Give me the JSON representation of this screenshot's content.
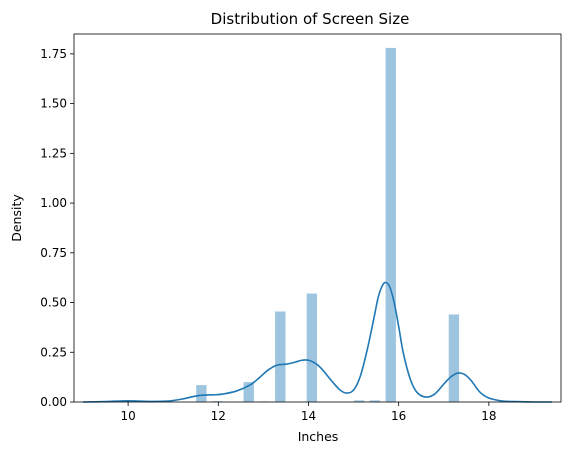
{
  "chart_data": {
    "type": "bar",
    "title": "Distribution of Screen Size",
    "xlabel": "Inches",
    "ylabel": "Density",
    "xlim": [
      8.8,
      19.6
    ],
    "ylim": [
      0,
      1.85
    ],
    "xticks": [
      10,
      12,
      14,
      16,
      18
    ],
    "xtick_labels": [
      "10",
      "12",
      "14",
      "16",
      "18"
    ],
    "yticks": [
      0.0,
      0.25,
      0.5,
      0.75,
      1.0,
      1.25,
      1.5,
      1.75
    ],
    "ytick_labels": [
      "0.00",
      "0.25",
      "0.50",
      "0.75",
      "1.00",
      "1.25",
      "1.50",
      "1.75"
    ],
    "grid": false,
    "colors": {
      "bar": "#9ec5e0",
      "kde": "#1f77b4"
    },
    "histogram": {
      "bins": [
        {
          "x0": 9.0,
          "x1": 9.35,
          "value": 0.0
        },
        {
          "x0": 9.35,
          "x1": 9.7,
          "value": 0.0
        },
        {
          "x0": 9.7,
          "x1": 10.05,
          "value": 0.004
        },
        {
          "x0": 10.05,
          "x1": 10.4,
          "value": 0.004
        },
        {
          "x0": 10.4,
          "x1": 10.75,
          "value": 0.0
        },
        {
          "x0": 10.75,
          "x1": 11.1,
          "value": 0.0
        },
        {
          "x0": 11.1,
          "x1": 11.45,
          "value": 0.0
        },
        {
          "x0": 11.45,
          "x1": 11.8,
          "value": 0.085
        },
        {
          "x0": 11.8,
          "x1": 12.15,
          "value": 0.004
        },
        {
          "x0": 12.15,
          "x1": 12.5,
          "value": 0.0
        },
        {
          "x0": 12.5,
          "x1": 12.85,
          "value": 0.1
        },
        {
          "x0": 12.85,
          "x1": 13.2,
          "value": 0.003
        },
        {
          "x0": 13.2,
          "x1": 13.55,
          "value": 0.455
        },
        {
          "x0": 13.55,
          "x1": 13.9,
          "value": 0.0
        },
        {
          "x0": 13.9,
          "x1": 14.25,
          "value": 0.545
        },
        {
          "x0": 14.25,
          "x1": 14.6,
          "value": 0.0
        },
        {
          "x0": 14.6,
          "x1": 14.95,
          "value": 0.0
        },
        {
          "x0": 14.95,
          "x1": 15.3,
          "value": 0.008
        },
        {
          "x0": 15.3,
          "x1": 15.65,
          "value": 0.008
        },
        {
          "x0": 15.65,
          "x1": 16.0,
          "value": 1.78
        },
        {
          "x0": 16.0,
          "x1": 16.35,
          "value": 0.0
        },
        {
          "x0": 16.35,
          "x1": 16.7,
          "value": 0.0
        },
        {
          "x0": 16.7,
          "x1": 17.05,
          "value": 0.0
        },
        {
          "x0": 17.05,
          "x1": 17.4,
          "value": 0.44
        },
        {
          "x0": 17.4,
          "x1": 17.75,
          "value": 0.0
        },
        {
          "x0": 17.75,
          "x1": 18.1,
          "value": 0.0
        },
        {
          "x0": 18.1,
          "x1": 18.45,
          "value": 0.0
        }
      ]
    },
    "kde": {
      "x": [
        9.0,
        9.5,
        9.8,
        10.0,
        10.2,
        10.5,
        10.9,
        11.2,
        11.5,
        11.7,
        11.9,
        12.1,
        12.4,
        12.7,
        12.9,
        13.1,
        13.3,
        13.5,
        13.7,
        13.85,
        14.0,
        14.15,
        14.3,
        14.5,
        14.7,
        14.85,
        15.0,
        15.15,
        15.3,
        15.45,
        15.55,
        15.65,
        15.72,
        15.8,
        15.9,
        16.0,
        16.1,
        16.25,
        16.4,
        16.6,
        16.8,
        17.0,
        17.15,
        17.3,
        17.45,
        17.6,
        17.8,
        18.0,
        18.3,
        18.6,
        19.0,
        19.4
      ],
      "y": [
        0.0,
        0.002,
        0.005,
        0.006,
        0.005,
        0.003,
        0.005,
        0.015,
        0.03,
        0.035,
        0.036,
        0.04,
        0.055,
        0.085,
        0.12,
        0.16,
        0.185,
        0.19,
        0.2,
        0.21,
        0.21,
        0.195,
        0.165,
        0.11,
        0.06,
        0.045,
        0.06,
        0.13,
        0.26,
        0.42,
        0.53,
        0.59,
        0.6,
        0.58,
        0.5,
        0.38,
        0.25,
        0.12,
        0.05,
        0.025,
        0.04,
        0.09,
        0.125,
        0.145,
        0.14,
        0.11,
        0.05,
        0.02,
        0.005,
        0.002,
        0.0,
        0.0
      ]
    }
  }
}
